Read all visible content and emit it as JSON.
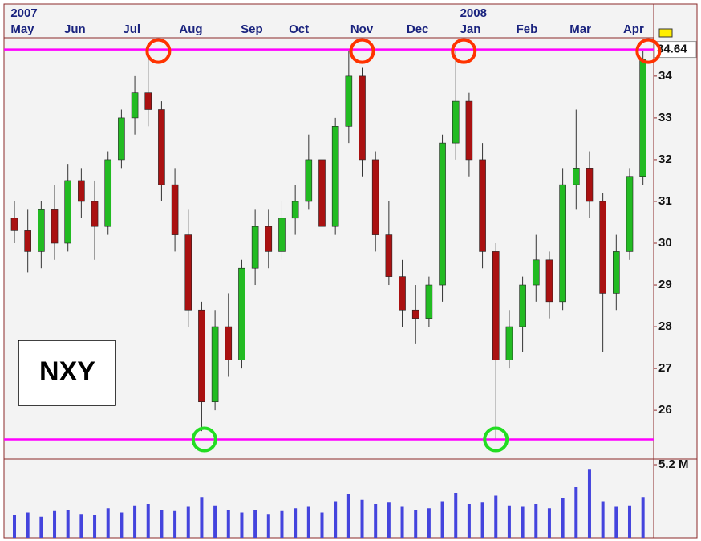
{
  "chart_data": {
    "type": "candlestick",
    "annotation": "NXY",
    "x": [
      2,
      7,
      12,
      17,
      22,
      27,
      32,
      37,
      42,
      47,
      52,
      57,
      62,
      67,
      72,
      77,
      82,
      87,
      92,
      97,
      102,
      107,
      112,
      117,
      122,
      127,
      132,
      137,
      142,
      147,
      152,
      157,
      162,
      167,
      172,
      177,
      182,
      187,
      192,
      197,
      202,
      207,
      212,
      217,
      222,
      227,
      232,
      237
    ],
    "open": [
      30.6,
      30.3,
      29.8,
      30.8,
      30.0,
      31.5,
      31.0,
      30.4,
      32.0,
      33.0,
      33.6,
      33.2,
      31.4,
      30.2,
      28.4,
      26.2,
      28.0,
      27.2,
      29.4,
      30.4,
      29.8,
      30.6,
      31.0,
      32.0,
      30.4,
      32.8,
      34.0,
      32.0,
      30.2,
      29.2,
      28.4,
      28.2,
      29.0,
      32.4,
      33.4,
      32.0,
      29.8,
      27.2,
      28.0,
      29.0,
      29.6,
      28.6,
      31.4,
      31.8,
      31.0,
      28.8,
      29.8,
      31.6
    ],
    "high": [
      31.0,
      30.8,
      31.0,
      31.4,
      31.9,
      31.8,
      31.5,
      32.2,
      33.2,
      34.0,
      34.6,
      33.4,
      31.8,
      30.8,
      28.6,
      28.4,
      28.8,
      29.6,
      30.8,
      30.8,
      31.0,
      31.4,
      32.6,
      32.2,
      33.0,
      34.6,
      34.2,
      32.2,
      31.0,
      29.6,
      29.0,
      29.2,
      32.6,
      34.6,
      33.6,
      32.4,
      30.0,
      28.4,
      29.2,
      30.2,
      29.8,
      31.8,
      33.2,
      32.2,
      31.2,
      30.2,
      31.8,
      34.6
    ],
    "low": [
      30.0,
      29.3,
      29.4,
      29.6,
      29.8,
      30.6,
      29.6,
      30.2,
      31.8,
      32.6,
      32.8,
      31.0,
      29.8,
      28.0,
      25.5,
      26.0,
      26.8,
      27.0,
      29.0,
      29.4,
      29.6,
      30.2,
      30.8,
      30.0,
      30.2,
      32.4,
      31.6,
      29.8,
      29.0,
      28.0,
      27.6,
      28.0,
      28.6,
      32.0,
      31.6,
      29.4,
      25.3,
      27.0,
      27.4,
      28.6,
      28.2,
      28.4,
      30.8,
      30.6,
      27.4,
      28.4,
      29.6,
      31.4
    ],
    "close": [
      30.3,
      29.8,
      30.8,
      30.0,
      31.5,
      31.0,
      30.4,
      32.0,
      33.0,
      33.6,
      33.2,
      31.4,
      30.2,
      28.4,
      26.2,
      28.0,
      27.2,
      29.4,
      30.4,
      29.8,
      30.6,
      31.0,
      32.0,
      30.4,
      32.8,
      34.0,
      32.0,
      30.2,
      29.2,
      28.4,
      28.2,
      29.0,
      32.4,
      33.4,
      32.0,
      29.8,
      27.2,
      28.0,
      29.0,
      29.6,
      28.6,
      31.4,
      31.8,
      31.0,
      28.8,
      29.8,
      31.6,
      34.4
    ],
    "volume": [
      1.6,
      1.8,
      1.5,
      1.9,
      2.0,
      1.7,
      1.6,
      2.1,
      1.8,
      2.3,
      2.4,
      2.0,
      1.9,
      2.2,
      2.9,
      2.3,
      2.0,
      1.8,
      2.0,
      1.7,
      1.9,
      2.1,
      2.2,
      1.8,
      2.6,
      3.1,
      2.7,
      2.4,
      2.5,
      2.2,
      2.0,
      2.1,
      2.6,
      3.2,
      2.4,
      2.5,
      3.0,
      2.3,
      2.2,
      2.4,
      2.1,
      2.8,
      3.6,
      4.9,
      2.6,
      2.2,
      2.3,
      2.9
    ],
    "up_color": "#22bb22",
    "down_color": "#aa1111",
    "volume_color": "#4444dd",
    "levels": [
      34.64,
      25.3
    ],
    "level_color": "#ff00ff",
    "tops": {
      "x": [
        55.8,
        132,
        170,
        239
      ],
      "y": [
        34.6,
        34.6,
        34.6,
        34.6
      ],
      "color": "#ff3300"
    },
    "bottoms": {
      "x": [
        73,
        182
      ],
      "y": [
        25.3,
        25.3
      ],
      "color": "#22dd22"
    },
    "xlim": [
      -1,
      241
    ],
    "xticks": [
      {
        "value": 0,
        "label": "May"
      },
      {
        "value": 20,
        "label": "Jun"
      },
      {
        "value": 42,
        "label": "Jul"
      },
      {
        "value": 63,
        "label": "Aug"
      },
      {
        "value": 86,
        "label": "Sep"
      },
      {
        "value": 104,
        "label": "Oct"
      },
      {
        "value": 127,
        "label": "Nov"
      },
      {
        "value": 148,
        "label": "Dec"
      },
      {
        "value": 168,
        "label": "Jan"
      },
      {
        "value": 189,
        "label": "Feb"
      },
      {
        "value": 209,
        "label": "Mar"
      },
      {
        "value": 229,
        "label": "Apr"
      }
    ],
    "year_labels": [
      {
        "value": 0,
        "label": "2007"
      },
      {
        "value": 168,
        "label": "2008"
      }
    ],
    "ylim": [
      24.83,
      34.92
    ],
    "yticks": [
      26,
      27,
      28,
      29,
      30,
      31,
      32,
      33,
      34
    ],
    "vlim": [
      0,
      5.6
    ],
    "vticks": [
      {
        "value": 5.2,
        "label": "5.2 M"
      }
    ]
  }
}
